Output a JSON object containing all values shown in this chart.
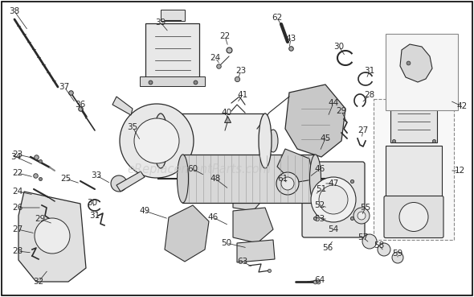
{
  "bg": "#ffffff",
  "border": "#000000",
  "lc": "#2a2a2a",
  "wm_text": "eReplacementParts.com",
  "wm_color": "#c0c0c0",
  "wm_alpha": 0.55,
  "fs": 7.5
}
